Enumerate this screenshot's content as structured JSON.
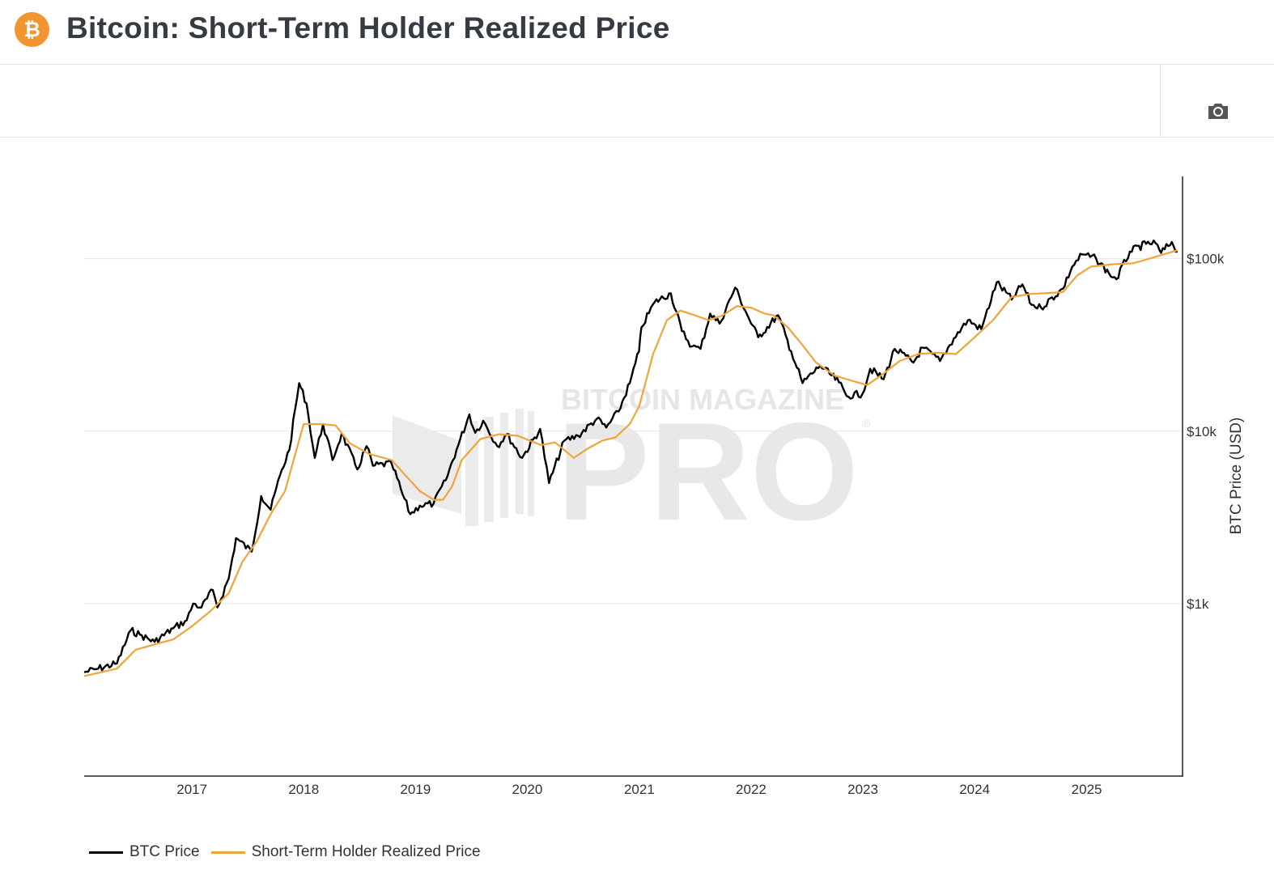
{
  "header": {
    "title": "Bitcoin: Short-Term Holder Realized Price",
    "logo_glyph": "₿",
    "logo_icon": "bitcoin-logo-icon"
  },
  "toolbar": {
    "camera_icon": "camera-icon"
  },
  "watermark": {
    "line1": "BITCOIN MAGAZINE",
    "line2": "PRO",
    "reg": "®"
  },
  "colors": {
    "btc": "#000000",
    "sth": "#f0a43a",
    "accent": "#f2942f",
    "grid": "#e6e6e6"
  },
  "chart_data": {
    "type": "line",
    "title": "Bitcoin: Short-Term Holder Realized Price",
    "xlabel": "",
    "ylabel": "BTC Price (USD)",
    "y_scale": "log",
    "x_range": [
      "2016-01-15",
      "2025-11-10"
    ],
    "ylim": [
      100,
      300000
    ],
    "x_ticks": [
      "2017",
      "2018",
      "2019",
      "2020",
      "2021",
      "2022",
      "2023",
      "2024",
      "2025"
    ],
    "y_ticks": [
      {
        "value": 1000,
        "label": "$1k"
      },
      {
        "value": 10000,
        "label": "$10k"
      },
      {
        "value": 100000,
        "label": "$100k"
      }
    ],
    "grid": true,
    "legend_position": "bottom-left",
    "series": [
      {
        "name": "BTC Price",
        "color": "#000000",
        "points": [
          [
            "2016-01-15",
            400
          ],
          [
            "2016-03-01",
            420
          ],
          [
            "2016-05-01",
            450
          ],
          [
            "2016-06-15",
            700
          ],
          [
            "2016-07-15",
            660
          ],
          [
            "2016-09-01",
            600
          ],
          [
            "2016-11-01",
            720
          ],
          [
            "2016-12-15",
            800
          ],
          [
            "2017-01-05",
            1000
          ],
          [
            "2017-02-01",
            950
          ],
          [
            "2017-03-10",
            1200
          ],
          [
            "2017-03-25",
            950
          ],
          [
            "2017-05-01",
            1400
          ],
          [
            "2017-05-25",
            2400
          ],
          [
            "2017-07-15",
            2000
          ],
          [
            "2017-08-15",
            4200
          ],
          [
            "2017-09-15",
            3500
          ],
          [
            "2017-10-15",
            5500
          ],
          [
            "2017-11-15",
            7800
          ],
          [
            "2017-12-17",
            19000
          ],
          [
            "2018-01-10",
            14500
          ],
          [
            "2018-02-06",
            7000
          ],
          [
            "2018-03-05",
            11000
          ],
          [
            "2018-04-05",
            6800
          ],
          [
            "2018-05-05",
            9700
          ],
          [
            "2018-06-25",
            6000
          ],
          [
            "2018-07-25",
            8200
          ],
          [
            "2018-08-15",
            6300
          ],
          [
            "2018-10-15",
            6500
          ],
          [
            "2018-11-20",
            4300
          ],
          [
            "2018-12-15",
            3300
          ],
          [
            "2019-01-15",
            3700
          ],
          [
            "2019-03-01",
            3800
          ],
          [
            "2019-04-10",
            5200
          ],
          [
            "2019-05-15",
            7800
          ],
          [
            "2019-06-26",
            12500
          ],
          [
            "2019-07-15",
            9800
          ],
          [
            "2019-08-10",
            11500
          ],
          [
            "2019-09-25",
            8200
          ],
          [
            "2019-10-26",
            9600
          ],
          [
            "2019-12-15",
            7000
          ],
          [
            "2020-02-12",
            10300
          ],
          [
            "2020-03-12",
            5000
          ],
          [
            "2020-05-01",
            8800
          ],
          [
            "2020-06-15",
            9400
          ],
          [
            "2020-08-15",
            11800
          ],
          [
            "2020-09-15",
            10500
          ],
          [
            "2020-10-25",
            13000
          ],
          [
            "2020-12-01",
            19000
          ],
          [
            "2020-12-31",
            29000
          ],
          [
            "2021-01-08",
            40000
          ],
          [
            "2021-02-20",
            56000
          ],
          [
            "2021-04-14",
            63000
          ],
          [
            "2021-05-20",
            38000
          ],
          [
            "2021-06-22",
            31000
          ],
          [
            "2021-07-20",
            30000
          ],
          [
            "2021-08-20",
            48000
          ],
          [
            "2021-09-20",
            42000
          ],
          [
            "2021-11-10",
            68000
          ],
          [
            "2021-12-20",
            47000
          ],
          [
            "2022-01-24",
            35000
          ],
          [
            "2022-03-30",
            47000
          ],
          [
            "2022-05-12",
            29000
          ],
          [
            "2022-06-18",
            19000
          ],
          [
            "2022-08-15",
            24000
          ],
          [
            "2022-10-15",
            19200
          ],
          [
            "2022-11-09",
            16000
          ],
          [
            "2022-12-31",
            16500
          ],
          [
            "2023-01-25",
            23000
          ],
          [
            "2023-03-10",
            20000
          ],
          [
            "2023-04-15",
            30000
          ],
          [
            "2023-06-15",
            25000
          ],
          [
            "2023-07-15",
            30500
          ],
          [
            "2023-09-10",
            25500
          ],
          [
            "2023-10-25",
            34500
          ],
          [
            "2023-12-10",
            44000
          ],
          [
            "2024-01-23",
            39000
          ],
          [
            "2024-03-13",
            73000
          ],
          [
            "2024-05-01",
            58000
          ],
          [
            "2024-06-05",
            71000
          ],
          [
            "2024-07-05",
            54000
          ],
          [
            "2024-08-05",
            52000
          ],
          [
            "2024-10-15",
            67000
          ],
          [
            "2024-11-15",
            90000
          ],
          [
            "2024-12-17",
            106000
          ],
          [
            "2025-02-01",
            100000
          ],
          [
            "2025-03-15",
            82000
          ],
          [
            "2025-04-08",
            76000
          ],
          [
            "2025-05-22",
            110000
          ],
          [
            "2025-07-14",
            122000
          ],
          [
            "2025-08-14",
            123000
          ],
          [
            "2025-09-01",
            108000
          ],
          [
            "2025-10-06",
            125000
          ],
          [
            "2025-10-25",
            110000
          ]
        ]
      },
      {
        "name": "Short-Term Holder Realized Price",
        "color": "#f0a43a",
        "points": [
          [
            "2016-01-15",
            380
          ],
          [
            "2016-05-01",
            420
          ],
          [
            "2016-07-01",
            540
          ],
          [
            "2016-09-01",
            580
          ],
          [
            "2016-11-01",
            620
          ],
          [
            "2017-01-01",
            740
          ],
          [
            "2017-03-01",
            900
          ],
          [
            "2017-05-01",
            1150
          ],
          [
            "2017-06-15",
            1750
          ],
          [
            "2017-08-01",
            2300
          ],
          [
            "2017-09-15",
            3300
          ],
          [
            "2017-11-01",
            4500
          ],
          [
            "2017-12-01",
            7000
          ],
          [
            "2018-01-01",
            11000
          ],
          [
            "2018-03-01",
            11000
          ],
          [
            "2018-04-15",
            10800
          ],
          [
            "2018-06-01",
            8500
          ],
          [
            "2018-08-01",
            7400
          ],
          [
            "2018-10-15",
            6800
          ],
          [
            "2018-12-01",
            5500
          ],
          [
            "2019-01-15",
            4500
          ],
          [
            "2019-03-01",
            4000
          ],
          [
            "2019-04-01",
            4000
          ],
          [
            "2019-05-01",
            4800
          ],
          [
            "2019-06-01",
            6800
          ],
          [
            "2019-08-01",
            9000
          ],
          [
            "2019-10-01",
            9600
          ],
          [
            "2019-12-01",
            9400
          ],
          [
            "2020-02-15",
            8300
          ],
          [
            "2020-04-01",
            8600
          ],
          [
            "2020-06-01",
            7000
          ],
          [
            "2020-07-15",
            7900
          ],
          [
            "2020-09-01",
            8800
          ],
          [
            "2020-10-15",
            9200
          ],
          [
            "2020-12-01",
            11000
          ],
          [
            "2021-01-01",
            14000
          ],
          [
            "2021-02-15",
            28000
          ],
          [
            "2021-04-01",
            44000
          ],
          [
            "2021-05-15",
            50000
          ],
          [
            "2021-07-01",
            47000
          ],
          [
            "2021-08-15",
            44000
          ],
          [
            "2021-10-01",
            47000
          ],
          [
            "2021-11-15",
            53000
          ],
          [
            "2022-01-01",
            52000
          ],
          [
            "2022-02-15",
            48000
          ],
          [
            "2022-03-15",
            47000
          ],
          [
            "2022-05-01",
            40000
          ],
          [
            "2022-06-15",
            32000
          ],
          [
            "2022-08-01",
            25000
          ],
          [
            "2022-10-01",
            21000
          ],
          [
            "2022-12-01",
            19500
          ],
          [
            "2023-01-15",
            18500
          ],
          [
            "2023-03-01",
            21000
          ],
          [
            "2023-05-01",
            25500
          ],
          [
            "2023-07-01",
            28000
          ],
          [
            "2023-09-01",
            28500
          ],
          [
            "2023-11-01",
            28000
          ],
          [
            "2024-01-01",
            35000
          ],
          [
            "2024-03-01",
            44000
          ],
          [
            "2024-05-01",
            60000
          ],
          [
            "2024-07-01",
            62500
          ],
          [
            "2024-08-15",
            63000
          ],
          [
            "2024-10-15",
            64000
          ],
          [
            "2024-12-01",
            80000
          ],
          [
            "2025-01-15",
            90000
          ],
          [
            "2025-04-01",
            93000
          ],
          [
            "2025-06-01",
            94000
          ],
          [
            "2025-08-01",
            101000
          ],
          [
            "2025-10-25",
            112000
          ]
        ]
      }
    ]
  }
}
